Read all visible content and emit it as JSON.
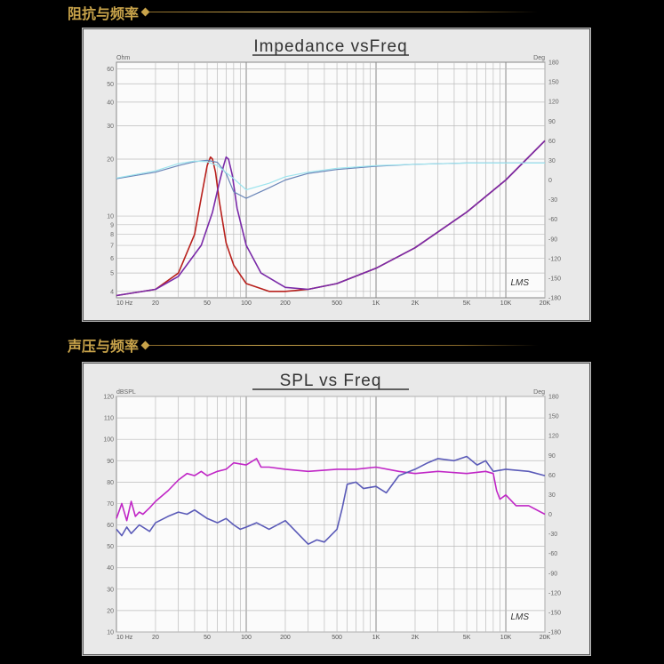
{
  "sections": {
    "impedance_heading": "阻抗与频率",
    "spl_heading": "声压与频率"
  },
  "colors": {
    "gold": "#c8a34a"
  },
  "chart_data": [
    {
      "type": "line",
      "title": "Impedance vsFreq",
      "left_unit": "Ohm",
      "right_unit": "Deg",
      "xscale": "log",
      "xlim": [
        10,
        20000
      ],
      "ylim": [
        3.7,
        65
      ],
      "yscale": "log",
      "y2lim": [
        -180,
        180
      ],
      "grid": true,
      "x_tick_labels": [
        {
          "v": 10,
          "t": "10 Hz"
        },
        {
          "v": 20,
          "t": "20"
        },
        {
          "v": 50,
          "t": "50"
        },
        {
          "v": 100,
          "t": "100"
        },
        {
          "v": 200,
          "t": "200"
        },
        {
          "v": 500,
          "t": "500"
        },
        {
          "v": 1000,
          "t": "1K"
        },
        {
          "v": 2000,
          "t": "2K"
        },
        {
          "v": 5000,
          "t": "5K"
        },
        {
          "v": 10000,
          "t": "10K"
        },
        {
          "v": 20000,
          "t": "20K"
        }
      ],
      "y_tick_labels": [
        {
          "v": 60,
          "t": "60"
        },
        {
          "v": 50,
          "t": "50"
        },
        {
          "v": 40,
          "t": "40"
        },
        {
          "v": 30,
          "t": "30"
        },
        {
          "v": 20,
          "t": "20"
        },
        {
          "v": 10,
          "t": "10"
        },
        {
          "v": 9,
          "t": "9"
        },
        {
          "v": 8,
          "t": "8"
        },
        {
          "v": 7,
          "t": "7"
        },
        {
          "v": 6,
          "t": "6"
        },
        {
          "v": 5,
          "t": "5"
        },
        {
          "v": 4,
          "t": "4"
        }
      ],
      "y2_tick_labels": [
        {
          "v": 180,
          "t": "180"
        },
        {
          "v": 150,
          "t": "150"
        },
        {
          "v": 120,
          "t": "120"
        },
        {
          "v": 90,
          "t": "90"
        },
        {
          "v": 60,
          "t": "60"
        },
        {
          "v": 30,
          "t": "30"
        },
        {
          "v": 0,
          "t": "0"
        },
        {
          "v": -30,
          "t": "-30"
        },
        {
          "v": -60,
          "t": "-60"
        },
        {
          "v": -90,
          "t": "-90"
        },
        {
          "v": -120,
          "t": "-120"
        },
        {
          "v": -150,
          "t": "-150"
        },
        {
          "v": -180,
          "t": "-180"
        }
      ],
      "watermark": "LMS",
      "series": [
        {
          "axis": "left",
          "color": "#b8201c",
          "x": [
            10,
            20,
            30,
            40,
            45,
            50,
            53,
            55,
            58,
            62,
            70,
            80,
            100,
            150,
            200,
            300,
            500,
            1000,
            2000,
            5000,
            10000,
            20000
          ],
          "y": [
            3.8,
            4.1,
            5.0,
            8.0,
            12.5,
            18.5,
            20.5,
            20.0,
            17.0,
            12.0,
            7.2,
            5.5,
            4.4,
            4.0,
            4.0,
            4.1,
            4.4,
            5.3,
            6.8,
            10.5,
            15.5,
            25
          ]
        },
        {
          "axis": "left",
          "color": "#7a2aa8",
          "x": [
            10,
            20,
            30,
            45,
            55,
            62,
            67,
            70,
            73,
            78,
            85,
            100,
            130,
            200,
            300,
            500,
            1000,
            2000,
            5000,
            10000,
            20000
          ],
          "y": [
            3.8,
            4.1,
            4.8,
            7.0,
            10.5,
            15.0,
            18.5,
            20.5,
            20.0,
            16.5,
            11.0,
            7.0,
            5.0,
            4.2,
            4.1,
            4.4,
            5.3,
            6.8,
            10.5,
            15.5,
            25
          ]
        },
        {
          "axis": "right",
          "color": "#6a86b8",
          "x": [
            10,
            20,
            30,
            40,
            50,
            60,
            70,
            80,
            100,
            150,
            200,
            300,
            500,
            1000,
            2000,
            5000,
            10000,
            20000
          ],
          "y": [
            2,
            12,
            22,
            28,
            30,
            27,
            10,
            -18,
            -28,
            -12,
            0,
            10,
            16,
            21,
            24,
            26,
            26,
            26
          ]
        },
        {
          "axis": "right",
          "color": "#9de4ee",
          "x": [
            10,
            20,
            30,
            40,
            50,
            60,
            80,
            100,
            150,
            200,
            300,
            500,
            1000,
            2000,
            5000,
            10000,
            20000
          ],
          "y": [
            3,
            14,
            25,
            29,
            28,
            22,
            2,
            -15,
            -5,
            5,
            12,
            18,
            22,
            24,
            26,
            26,
            26
          ]
        }
      ]
    },
    {
      "type": "line",
      "title": "SPL vs Freq",
      "left_unit": "dBSPL",
      "right_unit": "Deg",
      "xscale": "log",
      "xlim": [
        10,
        20000
      ],
      "ylim": [
        10,
        120
      ],
      "y2lim": [
        -180,
        180
      ],
      "grid": true,
      "x_tick_labels": [
        {
          "v": 10,
          "t": "10 Hz"
        },
        {
          "v": 20,
          "t": "20"
        },
        {
          "v": 50,
          "t": "50"
        },
        {
          "v": 100,
          "t": "100"
        },
        {
          "v": 200,
          "t": "200"
        },
        {
          "v": 500,
          "t": "500"
        },
        {
          "v": 1000,
          "t": "1K"
        },
        {
          "v": 2000,
          "t": "2K"
        },
        {
          "v": 5000,
          "t": "5K"
        },
        {
          "v": 10000,
          "t": "10K"
        },
        {
          "v": 20000,
          "t": "20K"
        }
      ],
      "y_tick_labels": [
        {
          "v": 120,
          "t": "120"
        },
        {
          "v": 110,
          "t": "110"
        },
        {
          "v": 100,
          "t": "100"
        },
        {
          "v": 90,
          "t": "90"
        },
        {
          "v": 80,
          "t": "80"
        },
        {
          "v": 70,
          "t": "70"
        },
        {
          "v": 60,
          "t": "60"
        },
        {
          "v": 50,
          "t": "50"
        },
        {
          "v": 40,
          "t": "40"
        },
        {
          "v": 30,
          "t": "30"
        },
        {
          "v": 20,
          "t": "20"
        },
        {
          "v": 10,
          "t": "10"
        }
      ],
      "y2_tick_labels": [
        {
          "v": 180,
          "t": "180"
        },
        {
          "v": 150,
          "t": "150"
        },
        {
          "v": 120,
          "t": "120"
        },
        {
          "v": 90,
          "t": "90"
        },
        {
          "v": 60,
          "t": "60"
        },
        {
          "v": 30,
          "t": "30"
        },
        {
          "v": 0,
          "t": "0"
        },
        {
          "v": -30,
          "t": "-30"
        },
        {
          "v": -60,
          "t": "-60"
        },
        {
          "v": -90,
          "t": "-90"
        },
        {
          "v": -120,
          "t": "-120"
        },
        {
          "v": -150,
          "t": "-150"
        },
        {
          "v": -180,
          "t": "-180"
        }
      ],
      "watermark": "LMS",
      "series": [
        {
          "axis": "left",
          "color": "#c026c6",
          "x": [
            10,
            11,
            12,
            13,
            14,
            15,
            16,
            18,
            20,
            25,
            30,
            35,
            40,
            45,
            50,
            60,
            70,
            80,
            100,
            120,
            130,
            150,
            200,
            300,
            500,
            700,
            1000,
            1500,
            2000,
            3000,
            5000,
            7000,
            8000,
            8500,
            9000,
            10000,
            12000,
            15000,
            20000
          ],
          "y": [
            63,
            70,
            62,
            71,
            64,
            66,
            65,
            68,
            71,
            76,
            81,
            84,
            83,
            85,
            83,
            85,
            86,
            89,
            88,
            91,
            87,
            87,
            86,
            85,
            86,
            86,
            87,
            85,
            84,
            85,
            84,
            85,
            84,
            76,
            72,
            74,
            69,
            69,
            65
          ]
        },
        {
          "axis": "left",
          "color": "#5a5ab8",
          "x": [
            10,
            11,
            12,
            13,
            15,
            18,
            20,
            25,
            30,
            35,
            40,
            50,
            60,
            70,
            80,
            90,
            100,
            120,
            150,
            200,
            300,
            350,
            400,
            500,
            550,
            600,
            700,
            800,
            1000,
            1200,
            1500,
            2000,
            2500,
            3000,
            4000,
            5000,
            6000,
            7000,
            8000,
            10000,
            15000,
            20000
          ],
          "y": [
            58,
            55,
            59,
            56,
            60,
            57,
            61,
            64,
            66,
            65,
            67,
            63,
            61,
            63,
            60,
            58,
            59,
            61,
            58,
            62,
            51,
            53,
            52,
            58,
            68,
            79,
            80,
            77,
            78,
            75,
            83,
            86,
            89,
            91,
            90,
            92,
            88,
            90,
            85,
            86,
            85,
            83
          ]
        }
      ]
    }
  ]
}
